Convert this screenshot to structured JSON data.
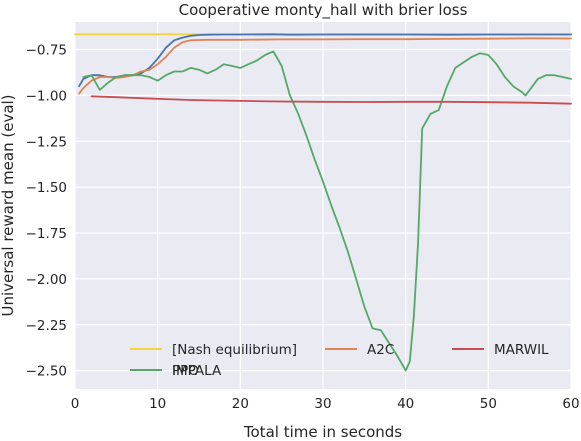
{
  "chart_data": {
    "type": "line",
    "title": "Cooperative monty_hall with brier loss",
    "xlabel": "Total time in seconds",
    "ylabel": "Universal reward mean (eval)",
    "xlim": [
      0,
      60
    ],
    "ylim": [
      -2.6,
      -0.6
    ],
    "xticks": [
      0,
      10,
      20,
      30,
      40,
      50,
      60
    ],
    "xtick_labels": [
      "0",
      "10",
      "20",
      "30",
      "40",
      "50",
      "60"
    ],
    "yticks": [
      -0.75,
      -1.0,
      -1.25,
      -1.5,
      -1.75,
      -2.0,
      -2.25,
      -2.5
    ],
    "ytick_labels": [
      "−0.75",
      "−1.00",
      "−1.25",
      "−1.50",
      "−1.75",
      "−2.00",
      "−2.25",
      "−2.50"
    ],
    "grid": true,
    "legend_position": "lower-center",
    "series": [
      {
        "name": "[Nash equilibrium]",
        "color": "#f5d33c",
        "x": [
          0,
          60
        ],
        "y": [
          -0.667,
          -0.667
        ]
      },
      {
        "name": "PPO",
        "color": "#4c72b0",
        "x": [
          0.5,
          1,
          2,
          3,
          4,
          5,
          6,
          7,
          8,
          9,
          10,
          11,
          12,
          13,
          14,
          15,
          16,
          18,
          20,
          24,
          26,
          30,
          40,
          45,
          50,
          55,
          60
        ],
        "y": [
          -0.95,
          -0.91,
          -0.89,
          -0.89,
          -0.9,
          -0.9,
          -0.89,
          -0.89,
          -0.88,
          -0.85,
          -0.8,
          -0.74,
          -0.7,
          -0.685,
          -0.675,
          -0.671,
          -0.669,
          -0.668,
          -0.668,
          -0.667,
          -0.669,
          -0.668,
          -0.668,
          -0.669,
          -0.668,
          -0.668,
          -0.668
        ]
      },
      {
        "name": "A2C",
        "color": "#dd8452",
        "x": [
          0.5,
          1,
          2,
          3,
          4,
          5,
          6,
          7,
          8,
          9,
          10,
          11,
          12,
          13,
          14,
          15,
          16,
          18,
          20,
          25,
          30,
          35,
          40,
          45,
          50,
          55,
          60
        ],
        "y": [
          -0.99,
          -0.96,
          -0.92,
          -0.9,
          -0.9,
          -0.905,
          -0.9,
          -0.89,
          -0.87,
          -0.86,
          -0.83,
          -0.79,
          -0.74,
          -0.71,
          -0.7,
          -0.698,
          -0.697,
          -0.697,
          -0.697,
          -0.695,
          -0.695,
          -0.694,
          -0.694,
          -0.692,
          -0.691,
          -0.689,
          -0.69
        ]
      },
      {
        "name": "IMPALA",
        "color": "#55a868",
        "x": [
          1,
          2,
          3,
          4,
          5,
          6,
          7,
          8,
          9,
          10,
          11,
          12,
          13,
          14,
          15,
          16,
          17,
          18,
          19,
          20,
          21,
          22,
          23,
          24,
          25,
          26,
          27,
          28,
          29,
          30,
          31,
          32,
          33,
          34,
          35,
          36,
          37,
          38,
          39,
          40,
          40.5,
          41,
          41.5,
          42,
          43,
          44,
          45,
          46,
          47,
          48,
          49,
          50,
          51,
          52,
          53,
          54,
          54.5,
          55,
          56,
          57,
          58,
          59,
          60
        ],
        "y": [
          -0.9,
          -0.89,
          -0.97,
          -0.93,
          -0.9,
          -0.89,
          -0.89,
          -0.89,
          -0.9,
          -0.92,
          -0.89,
          -0.87,
          -0.87,
          -0.85,
          -0.86,
          -0.88,
          -0.86,
          -0.83,
          -0.84,
          -0.85,
          -0.83,
          -0.81,
          -0.78,
          -0.76,
          -0.84,
          -1.0,
          -1.1,
          -1.22,
          -1.35,
          -1.47,
          -1.6,
          -1.72,
          -1.85,
          -2.0,
          -2.15,
          -2.27,
          -2.28,
          -2.35,
          -2.42,
          -2.5,
          -2.45,
          -2.2,
          -1.8,
          -1.18,
          -1.1,
          -1.08,
          -0.95,
          -0.85,
          -0.82,
          -0.79,
          -0.77,
          -0.78,
          -0.83,
          -0.9,
          -0.95,
          -0.98,
          -1.0,
          -0.97,
          -0.91,
          -0.89,
          -0.89,
          -0.9,
          -0.91
        ]
      },
      {
        "name": "MARWIL",
        "color": "#c44e52",
        "x": [
          2,
          5,
          8,
          11,
          14,
          17,
          20,
          25,
          30,
          35,
          40,
          45,
          50,
          55,
          60
        ],
        "y": [
          -1.005,
          -1.01,
          -1.015,
          -1.02,
          -1.025,
          -1.028,
          -1.03,
          -1.033,
          -1.035,
          -1.036,
          -1.035,
          -1.035,
          -1.037,
          -1.04,
          -1.045
        ]
      }
    ]
  }
}
